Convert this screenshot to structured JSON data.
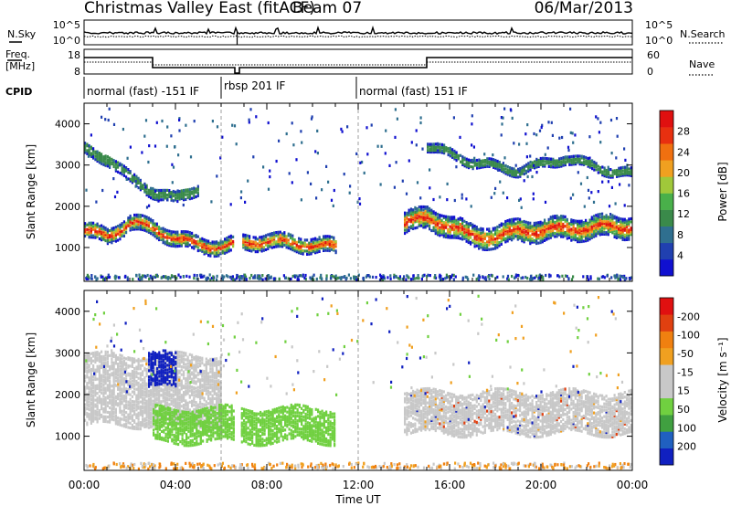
{
  "header": {
    "station": "Christmas Valley East (fitACF)",
    "beam": "Beam 07",
    "date": "06/Mar/2013"
  },
  "noise_panel": {
    "left_label": "N.Sky",
    "left_ticks": [
      "10^5",
      "10^0"
    ],
    "right_label": "N.Search",
    "right_ticks": [
      "10^5",
      "10^0"
    ]
  },
  "freq_panel": {
    "left_label_line1": "Freq.",
    "left_label_line2": "[MHz]",
    "left_ticks": [
      "18",
      "8"
    ],
    "right_label": "Nave",
    "right_ticks": [
      "60",
      "0"
    ]
  },
  "cpid": {
    "label": "CPID",
    "segments": [
      {
        "text": "normal (fast) -151 IF",
        "start_hour": 0,
        "end_hour": 6
      },
      {
        "text": "rbsp 201 IF",
        "start_hour": 6.6,
        "end_hour": 12
      },
      {
        "text": "normal (fast) 151 IF",
        "start_hour": 12,
        "end_hour": 24
      }
    ]
  },
  "chart_data": [
    {
      "type": "heatmap",
      "quantity": "power",
      "ylabel": "Slant Range [km]",
      "ylim": [
        180,
        4500
      ],
      "yticks": [
        1000,
        2000,
        3000,
        4000
      ],
      "xlim": [
        0,
        24
      ],
      "xticks": [
        "00:00",
        "04:00",
        "08:00",
        "12:00",
        "16:00",
        "20:00",
        "00:00"
      ],
      "colorbar": {
        "label": "Power [dB]",
        "ticks": [
          "4",
          "8",
          "12",
          "16",
          "20",
          "24",
          "28"
        ],
        "colors": [
          "#1010d0",
          "#2040b0",
          "#2f6f8f",
          "#3a8a4a",
          "#49b04a",
          "#a0c83a",
          "#f0a020",
          "#f07010",
          "#e83010",
          "#e01010"
        ]
      },
      "bands": [
        {
          "name": "main",
          "range_km": [
            [
              0,
              1450
            ],
            [
              1,
              1300
            ],
            [
              2,
              1650
            ],
            [
              3,
              1500
            ],
            [
              4,
              1250
            ],
            [
              5,
              1100
            ],
            [
              6,
              1050
            ],
            [
              7,
              1150
            ],
            [
              8,
              1200
            ],
            [
              9,
              1150
            ],
            [
              10,
              1100
            ],
            [
              11,
              1050
            ]
          ],
          "width_km": 350
        },
        {
          "name": "evening",
          "range_km": [
            [
              14,
              1600
            ],
            [
              15,
              1800
            ],
            [
              16,
              1500
            ],
            [
              17,
              1350
            ],
            [
              18,
              1250
            ],
            [
              19,
              1500
            ],
            [
              20,
              1400
            ],
            [
              21,
              1550
            ],
            [
              22,
              1450
            ],
            [
              23,
              1600
            ],
            [
              24,
              1500
            ]
          ],
          "width_km": 500
        },
        {
          "name": "upper-morning",
          "range_km": [
            [
              0,
              3400
            ],
            [
              1,
              3200
            ],
            [
              2,
              2700
            ],
            [
              3,
              2400
            ],
            [
              4,
              2200
            ],
            [
              5,
              2500
            ]
          ],
          "width_km": 250
        },
        {
          "name": "upper-evening",
          "range_km": [
            [
              15,
              3500
            ],
            [
              17,
              3100
            ],
            [
              19,
              2900
            ],
            [
              21,
              3200
            ],
            [
              23,
              2900
            ],
            [
              24,
              2800
            ]
          ],
          "width_km": 200
        }
      ]
    },
    {
      "type": "heatmap",
      "quantity": "velocity",
      "ylabel": "Slant Range [km]",
      "ylim": [
        180,
        4500
      ],
      "yticks": [
        1000,
        2000,
        3000,
        4000
      ],
      "xlim": [
        0,
        24
      ],
      "xticks": [
        "00:00",
        "04:00",
        "08:00",
        "12:00",
        "16:00",
        "20:00",
        "00:00"
      ],
      "xlabel": "Time UT",
      "colorbar": {
        "label": "Velocity [m s⁻¹]",
        "ticks": [
          "200",
          "100",
          "50",
          "15",
          "-15",
          "-50",
          "-100",
          "-200"
        ],
        "colors": [
          "#1020c0",
          "#2060c0",
          "#40a040",
          "#70d040",
          "#c8c8c8",
          "#c8c8c8",
          "#f0a020",
          "#f08010",
          "#e04010",
          "#e01010"
        ]
      },
      "regions": [
        {
          "color": "ground",
          "x": [
            0,
            6
          ],
          "y": [
            1300,
            3000
          ]
        },
        {
          "color": "blue",
          "x": [
            2.8,
            4
          ],
          "y": [
            2200,
            3000
          ]
        },
        {
          "color": "green",
          "x": [
            3,
            11
          ],
          "y": [
            900,
            1700
          ]
        },
        {
          "color": "ground",
          "x": [
            14,
            24
          ],
          "y": [
            1100,
            2100
          ]
        }
      ]
    }
  ]
}
